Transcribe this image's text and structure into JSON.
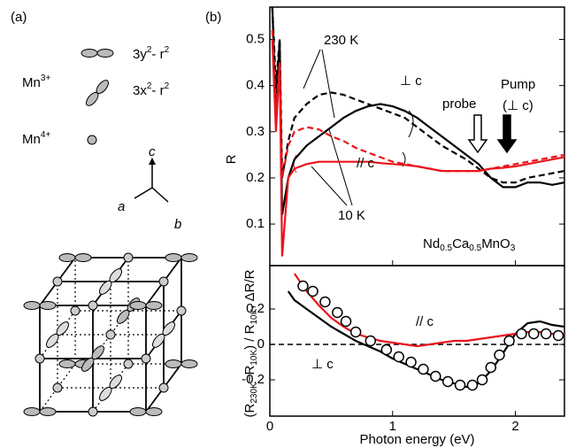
{
  "panel_a": {
    "label": "(a)",
    "mn3": [
      "Mn",
      "3+"
    ],
    "orb1": [
      "3y",
      "2",
      "- r",
      "2"
    ],
    "orb2": [
      "3x",
      "2",
      "- r",
      "2"
    ],
    "mn4": [
      "Mn",
      "4+"
    ],
    "axes": [
      "c",
      "a",
      "b"
    ]
  },
  "chart_data": [
    {
      "type": "line",
      "panel_label": "(b)",
      "ylabel": "R",
      "xlim": [
        0,
        2.4
      ],
      "ylim": [
        0.01,
        0.57
      ],
      "yticks": [
        0.1,
        0.2,
        0.3,
        0.4,
        0.5
      ],
      "x": [
        0.02,
        0.05,
        0.08,
        0.1,
        0.15,
        0.2,
        0.3,
        0.4,
        0.5,
        0.6,
        0.7,
        0.8,
        0.9,
        1.0,
        1.1,
        1.2,
        1.3,
        1.4,
        1.5,
        1.6,
        1.7,
        1.8,
        1.9,
        2.0,
        2.1,
        2.2,
        2.3,
        2.4
      ],
      "series": [
        {
          "color": "#000000",
          "dash": true,
          "values": [
            0.57,
            0.4,
            0.5,
            0.2,
            0.28,
            0.33,
            0.36,
            0.38,
            0.385,
            0.38,
            0.37,
            0.36,
            0.35,
            0.34,
            0.33,
            0.31,
            0.29,
            0.27,
            0.255,
            0.24,
            0.22,
            0.2,
            0.19,
            0.19,
            0.2,
            0.205,
            0.21,
            0.215
          ]
        },
        {
          "color": "#000000",
          "dash": false,
          "values": [
            0.57,
            0.35,
            0.5,
            0.12,
            0.2,
            0.24,
            0.27,
            0.29,
            0.31,
            0.33,
            0.345,
            0.355,
            0.36,
            0.355,
            0.345,
            0.33,
            0.31,
            0.29,
            0.27,
            0.25,
            0.23,
            0.2,
            0.18,
            0.18,
            0.19,
            0.19,
            0.185,
            0.19
          ]
        },
        {
          "color": "#e8141b",
          "dash": true,
          "values": [
            0.52,
            0.35,
            0.45,
            0.2,
            0.27,
            0.3,
            0.31,
            0.305,
            0.29,
            0.28,
            0.265,
            0.255,
            0.245,
            0.235,
            0.23,
            0.225,
            0.22,
            0.215,
            0.215,
            0.215,
            0.215,
            0.22,
            0.225,
            0.23,
            0.235,
            0.24,
            0.245,
            0.25
          ]
        },
        {
          "color": "#e8141b",
          "dash": false,
          "values": [
            0.5,
            0.3,
            0.45,
            0.03,
            0.2,
            0.22,
            0.23,
            0.235,
            0.235,
            0.235,
            0.235,
            0.235,
            0.232,
            0.23,
            0.228,
            0.225,
            0.22,
            0.215,
            0.215,
            0.215,
            0.215,
            0.22,
            0.222,
            0.225,
            0.23,
            0.235,
            0.24,
            0.245
          ]
        }
      ],
      "annotations": [
        "230 K",
        "⊥ c",
        "probe",
        "Pump",
        "(⊥ c)",
        "// c",
        "10 K"
      ],
      "compound": [
        "Nd",
        "0.5",
        "Ca",
        "0.5",
        "MnO",
        "3"
      ]
    },
    {
      "type": "line",
      "xlabel": "Photon energy  (eV)",
      "ylabel": [
        "(R",
        "230K",
        "−R",
        "10K",
        ") / R",
        "10K",
        ",  ΔR/R"
      ],
      "xlim": [
        0,
        2.4
      ],
      "ylim": [
        -0.405,
        0.445
      ],
      "xticks": [
        0,
        1,
        2
      ],
      "yticks": [
        -0.2,
        0,
        0.2
      ],
      "hline": 0,
      "x": [
        0.15,
        0.2,
        0.3,
        0.4,
        0.5,
        0.6,
        0.7,
        0.8,
        0.9,
        1.0,
        1.1,
        1.2,
        1.3,
        1.4,
        1.5,
        1.6,
        1.7,
        1.8,
        1.9,
        2.0,
        2.1,
        2.2,
        2.3,
        2.4
      ],
      "series": [
        {
          "color": "#000000",
          "values": [
            0.3,
            0.25,
            0.2,
            0.15,
            0.1,
            0.06,
            0.02,
            -0.01,
            -0.04,
            -0.08,
            -0.11,
            -0.14,
            -0.17,
            -0.2,
            -0.22,
            -0.24,
            -0.22,
            -0.15,
            -0.05,
            0.06,
            0.12,
            0.13,
            0.11,
            0.1
          ]
        },
        {
          "color": "#e8141b",
          "values": [
            null,
            0.4,
            0.3,
            0.22,
            0.15,
            0.1,
            0.06,
            0.04,
            0.02,
            0.01,
            0.0,
            -0.01,
            0.0,
            0.01,
            0.02,
            0.02,
            0.03,
            0.04,
            0.05,
            0.06,
            0.07,
            0.07,
            0.06,
            0.06
          ]
        }
      ],
      "points": {
        "x": [
          0.27,
          0.35,
          0.45,
          0.55,
          0.62,
          0.7,
          0.82,
          0.95,
          1.05,
          1.15,
          1.25,
          1.35,
          1.45,
          1.55,
          1.65,
          1.73,
          1.8,
          1.87,
          1.95,
          2.05,
          2.15,
          2.25,
          2.35
        ],
        "values": [
          0.33,
          0.3,
          0.24,
          0.18,
          0.13,
          0.07,
          0.02,
          -0.03,
          -0.07,
          -0.1,
          -0.14,
          -0.18,
          -0.21,
          -0.23,
          -0.23,
          -0.2,
          -0.13,
          -0.06,
          0.02,
          0.06,
          0.06,
          0.06,
          0.05
        ]
      },
      "annotations": [
        "// c",
        "⊥ c"
      ]
    }
  ]
}
